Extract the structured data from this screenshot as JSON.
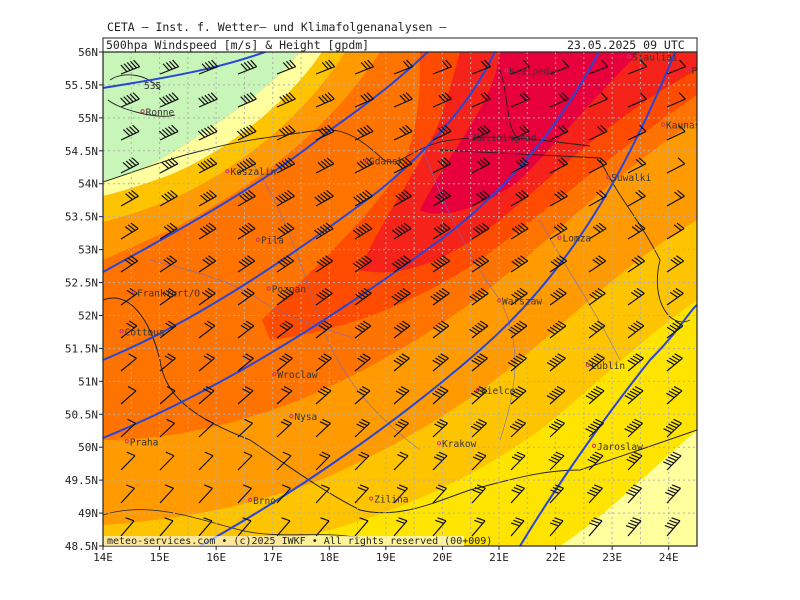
{
  "header": {
    "source": "CETA – Inst. f. Wetter– und Klimafolgenanalysen –",
    "product": "500hpa Windspeed [m/s] & Height [gpdm]",
    "datetime": "23.05.2025 09 UTC"
  },
  "footer": "meteo-services.com • (c)2025 IWKF • All rights reserved (00+009)",
  "axes": {
    "lon_range": [
      14,
      24.5
    ],
    "lat_range": [
      48.5,
      56
    ],
    "lon_ticks": [
      "14E",
      "15E",
      "16E",
      "17E",
      "18E",
      "19E",
      "20E",
      "21E",
      "22E",
      "23E",
      "24E"
    ],
    "lat_ticks": [
      "48.5N",
      "49N",
      "49.5N",
      "50N",
      "50.5N",
      "51N",
      "51.5N",
      "52N",
      "52.5N",
      "53N",
      "53.5N",
      "54N",
      "54.5N",
      "55N",
      "55.5N",
      "56N"
    ]
  },
  "height_contour_label": "535",
  "colors": {
    "lightgreen": "#c8f5b8",
    "lightyellow": "#ffff9e",
    "yellow": "#ffe400",
    "gold": "#ffc400",
    "orange": "#ff9a00",
    "darkorange": "#ff7400",
    "red_orange": "#ff4b00",
    "red": "#f5231a",
    "crimson": "#e8003c",
    "contour": "#2846d8"
  },
  "cities": [
    {
      "name": "Siauliai",
      "lon": 23.3,
      "lat": 55.93
    },
    {
      "name": "Panevezys",
      "lon": 24.35,
      "lat": 55.73
    },
    {
      "name": "Klaipeda",
      "lon": 21.13,
      "lat": 55.72
    },
    {
      "name": "Kaunas",
      "lon": 23.9,
      "lat": 54.9
    },
    {
      "name": "Ronne",
      "lon": 14.7,
      "lat": 55.1
    },
    {
      "name": "Kaliningrad",
      "lon": 20.5,
      "lat": 54.71
    },
    {
      "name": "Gdansk",
      "lon": 18.65,
      "lat": 54.35
    },
    {
      "name": "Suwalki",
      "lon": 22.93,
      "lat": 54.1
    },
    {
      "name": "Koszalin",
      "lon": 16.2,
      "lat": 54.19
    },
    {
      "name": "Lomza",
      "lon": 22.07,
      "lat": 53.18
    },
    {
      "name": "Pila",
      "lon": 16.74,
      "lat": 53.15
    },
    {
      "name": "Poznan",
      "lon": 16.93,
      "lat": 52.41
    },
    {
      "name": "Frankfurt/O",
      "lon": 14.55,
      "lat": 52.35
    },
    {
      "name": "Warszaw",
      "lon": 21.0,
      "lat": 52.23
    },
    {
      "name": "Cottbus",
      "lon": 14.33,
      "lat": 51.76
    },
    {
      "name": "Lublin",
      "lon": 22.57,
      "lat": 51.25
    },
    {
      "name": "Wroclaw",
      "lon": 17.03,
      "lat": 51.11
    },
    {
      "name": "Kielce",
      "lon": 20.63,
      "lat": 50.87
    },
    {
      "name": "Nysa",
      "lon": 17.33,
      "lat": 50.47
    },
    {
      "name": "Praha",
      "lon": 14.42,
      "lat": 50.09
    },
    {
      "name": "Krakow",
      "lon": 19.94,
      "lat": 50.06
    },
    {
      "name": "Jaroslaw",
      "lon": 22.68,
      "lat": 50.02
    },
    {
      "name": "Brno",
      "lon": 16.6,
      "lat": 49.2
    },
    {
      "name": "Zilina",
      "lon": 18.74,
      "lat": 49.22
    }
  ]
}
